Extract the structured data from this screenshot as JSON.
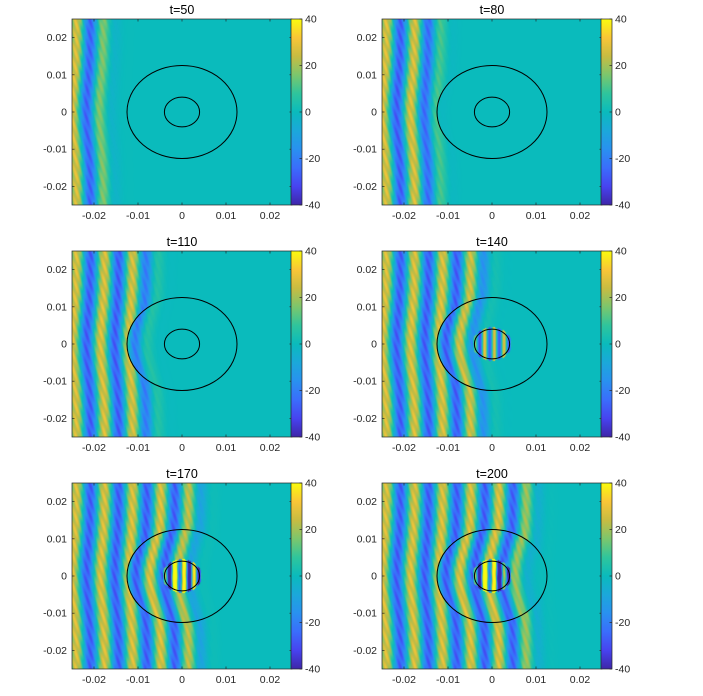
{
  "chart_data": {
    "type": "heatmap",
    "colormap": "parula",
    "clim": [
      -40,
      40
    ],
    "xlim": [
      -0.025,
      0.025
    ],
    "ylim": [
      -0.025,
      0.025
    ],
    "grid": false,
    "panels": [
      {
        "title": "t=50"
      },
      {
        "title": "t=80"
      },
      {
        "title": "t=110"
      },
      {
        "title": "t=140"
      },
      {
        "title": "t=170"
      },
      {
        "title": "t=200"
      }
    ],
    "xticks": [
      -0.02,
      -0.01,
      0,
      0.01,
      0.02
    ],
    "xtick_labels": [
      "-0.02",
      "-0.01",
      "0",
      "0.01",
      "0.02"
    ],
    "yticks": [
      0.02,
      0.01,
      0,
      -0.01,
      -0.02
    ],
    "ytick_labels": [
      "0.02",
      "0.01",
      "0",
      "-0.01",
      "-0.02"
    ],
    "colorbar_ticks": [
      40,
      20,
      0,
      -20,
      -40
    ],
    "colorbar_labels": [
      "40",
      "20",
      "0",
      "-20",
      "-40"
    ],
    "overlay_circles": [
      {
        "cx": 0,
        "cy": 0,
        "r": 0.0125
      },
      {
        "cx": 0,
        "cy": 0,
        "r": 0.004
      }
    ]
  }
}
